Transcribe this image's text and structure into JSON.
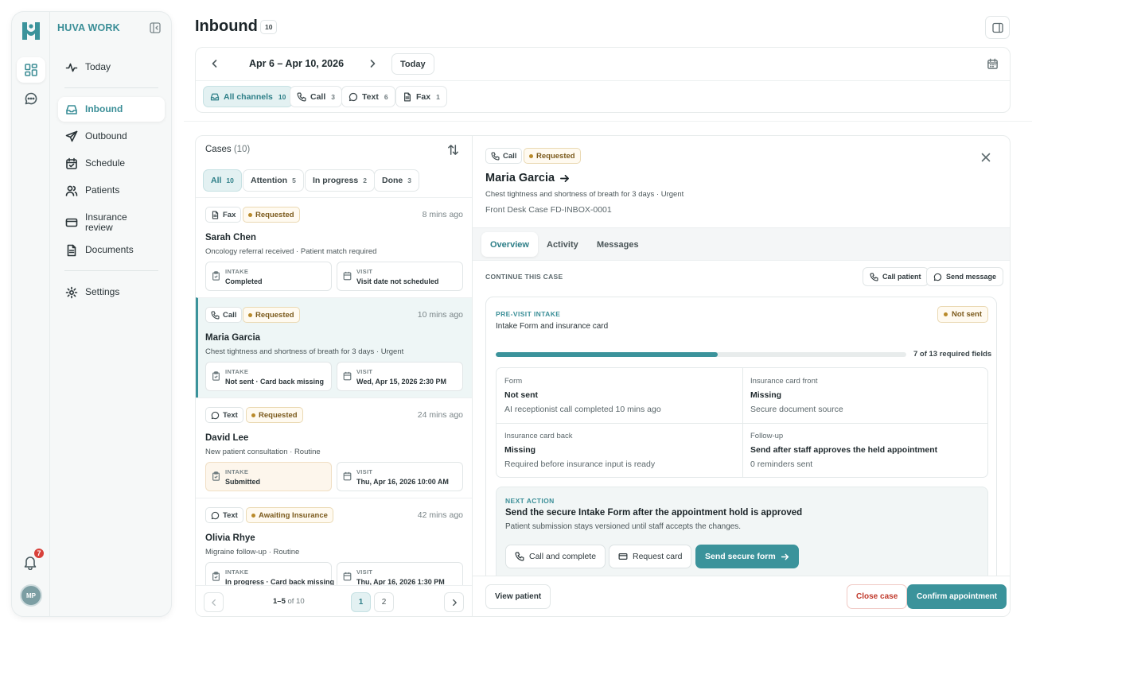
{
  "brand": "HUVA WORK",
  "sidebar": {
    "items": [
      {
        "label": "Today"
      },
      {
        "label": "Inbound"
      },
      {
        "label": "Outbound"
      },
      {
        "label": "Schedule"
      },
      {
        "label": "Patients"
      },
      {
        "label": "Insurance review"
      },
      {
        "label": "Documents"
      },
      {
        "label": "Settings"
      }
    ],
    "notification_count": "7",
    "avatar_initials": "MP"
  },
  "header": {
    "title": "Inbound",
    "count": "10",
    "date_range": "Apr 6 – Apr 10, 2026",
    "today_label": "Today",
    "channels": [
      {
        "label": "All channels",
        "count": "10"
      },
      {
        "label": "Call",
        "count": "3"
      },
      {
        "label": "Text",
        "count": "6"
      },
      {
        "label": "Fax",
        "count": "1"
      }
    ]
  },
  "cases": {
    "title": "Cases",
    "count": "(10)",
    "tabs": [
      {
        "label": "All",
        "count": "10"
      },
      {
        "label": "Attention",
        "count": "5"
      },
      {
        "label": "In progress",
        "count": "2"
      },
      {
        "label": "Done",
        "count": "3"
      }
    ],
    "items": [
      {
        "channel": "Fax",
        "status": "Requested",
        "time": "8 mins ago",
        "name": "Sarah Chen",
        "desc": "Oncology referral received · Patient match required",
        "intake_label": "INTAKE",
        "intake": "Completed",
        "visit_label": "VISIT",
        "visit": "Visit date not scheduled"
      },
      {
        "channel": "Call",
        "status": "Requested",
        "time": "10 mins ago",
        "name": "Maria Garcia",
        "desc": "Chest tightness and shortness of breath for 3 days · Urgent",
        "intake_label": "INTAKE",
        "intake": "Not sent · Card back missing",
        "visit_label": "VISIT",
        "visit": "Wed, Apr 15, 2026 2:30 PM"
      },
      {
        "channel": "Text",
        "status": "Requested",
        "time": "24 mins ago",
        "name": "David Lee",
        "desc": "New patient consultation · Routine",
        "intake_label": "INTAKE",
        "intake": "Submitted",
        "visit_label": "VISIT",
        "visit": "Thu, Apr 16, 2026 10:00 AM"
      },
      {
        "channel": "Text",
        "status": "Awaiting Insurance",
        "time": "42 mins ago",
        "name": "Olivia Rhye",
        "desc": "Migraine follow-up · Routine",
        "intake_label": "INTAKE",
        "intake": "In progress · Card back missing",
        "visit_label": "VISIT",
        "visit": "Thu, Apr 16, 2026 1:30 PM"
      }
    ],
    "pager": {
      "range": "1–5",
      "of": "of 10",
      "pages": [
        "1",
        "2"
      ]
    }
  },
  "detail": {
    "channel": "Call",
    "status": "Requested",
    "name": "Maria Garcia",
    "summary": "Chest tightness and shortness of breath for 3 days · Urgent",
    "case_id": "Front Desk Case FD-INBOX-0001",
    "tabs": [
      "Overview",
      "Activity",
      "Messages"
    ],
    "continue_label": "CONTINUE THIS CASE",
    "call_patient": "Call patient",
    "send_message": "Send message",
    "intake": {
      "kicker": "PRE-VISIT INTAKE",
      "title": "Intake Form and insurance card",
      "status": "Not sent",
      "progress_fraction": 0.54,
      "progress_text": "7 of 13 required fields",
      "cells": [
        {
          "label": "Form",
          "value": "Not sent",
          "note": "AI receptionist call completed 10 mins ago"
        },
        {
          "label": "Insurance card front",
          "value": "Missing",
          "note": "Secure document source"
        },
        {
          "label": "Insurance card back",
          "value": "Missing",
          "note": "Required before insurance input is ready"
        },
        {
          "label": "Follow-up",
          "value": "Send after staff approves the held appointment",
          "note": "0 reminders sent"
        }
      ]
    },
    "next_action": {
      "kicker": "NEXT ACTION",
      "title": "Send the secure Intake Form after the appointment hold is approved",
      "sub": "Patient submission stays versioned until staff accepts the changes.",
      "call_complete": "Call and complete",
      "request_card": "Request card",
      "send_form": "Send secure form"
    },
    "footer": {
      "view_patient": "View patient",
      "close_case": "Close case",
      "confirm": "Confirm appointment"
    }
  },
  "colors": {
    "accent": "#3b939b",
    "status_amber": "#b98a2a",
    "danger": "#c0392b",
    "badge_red": "#d8413a"
  }
}
